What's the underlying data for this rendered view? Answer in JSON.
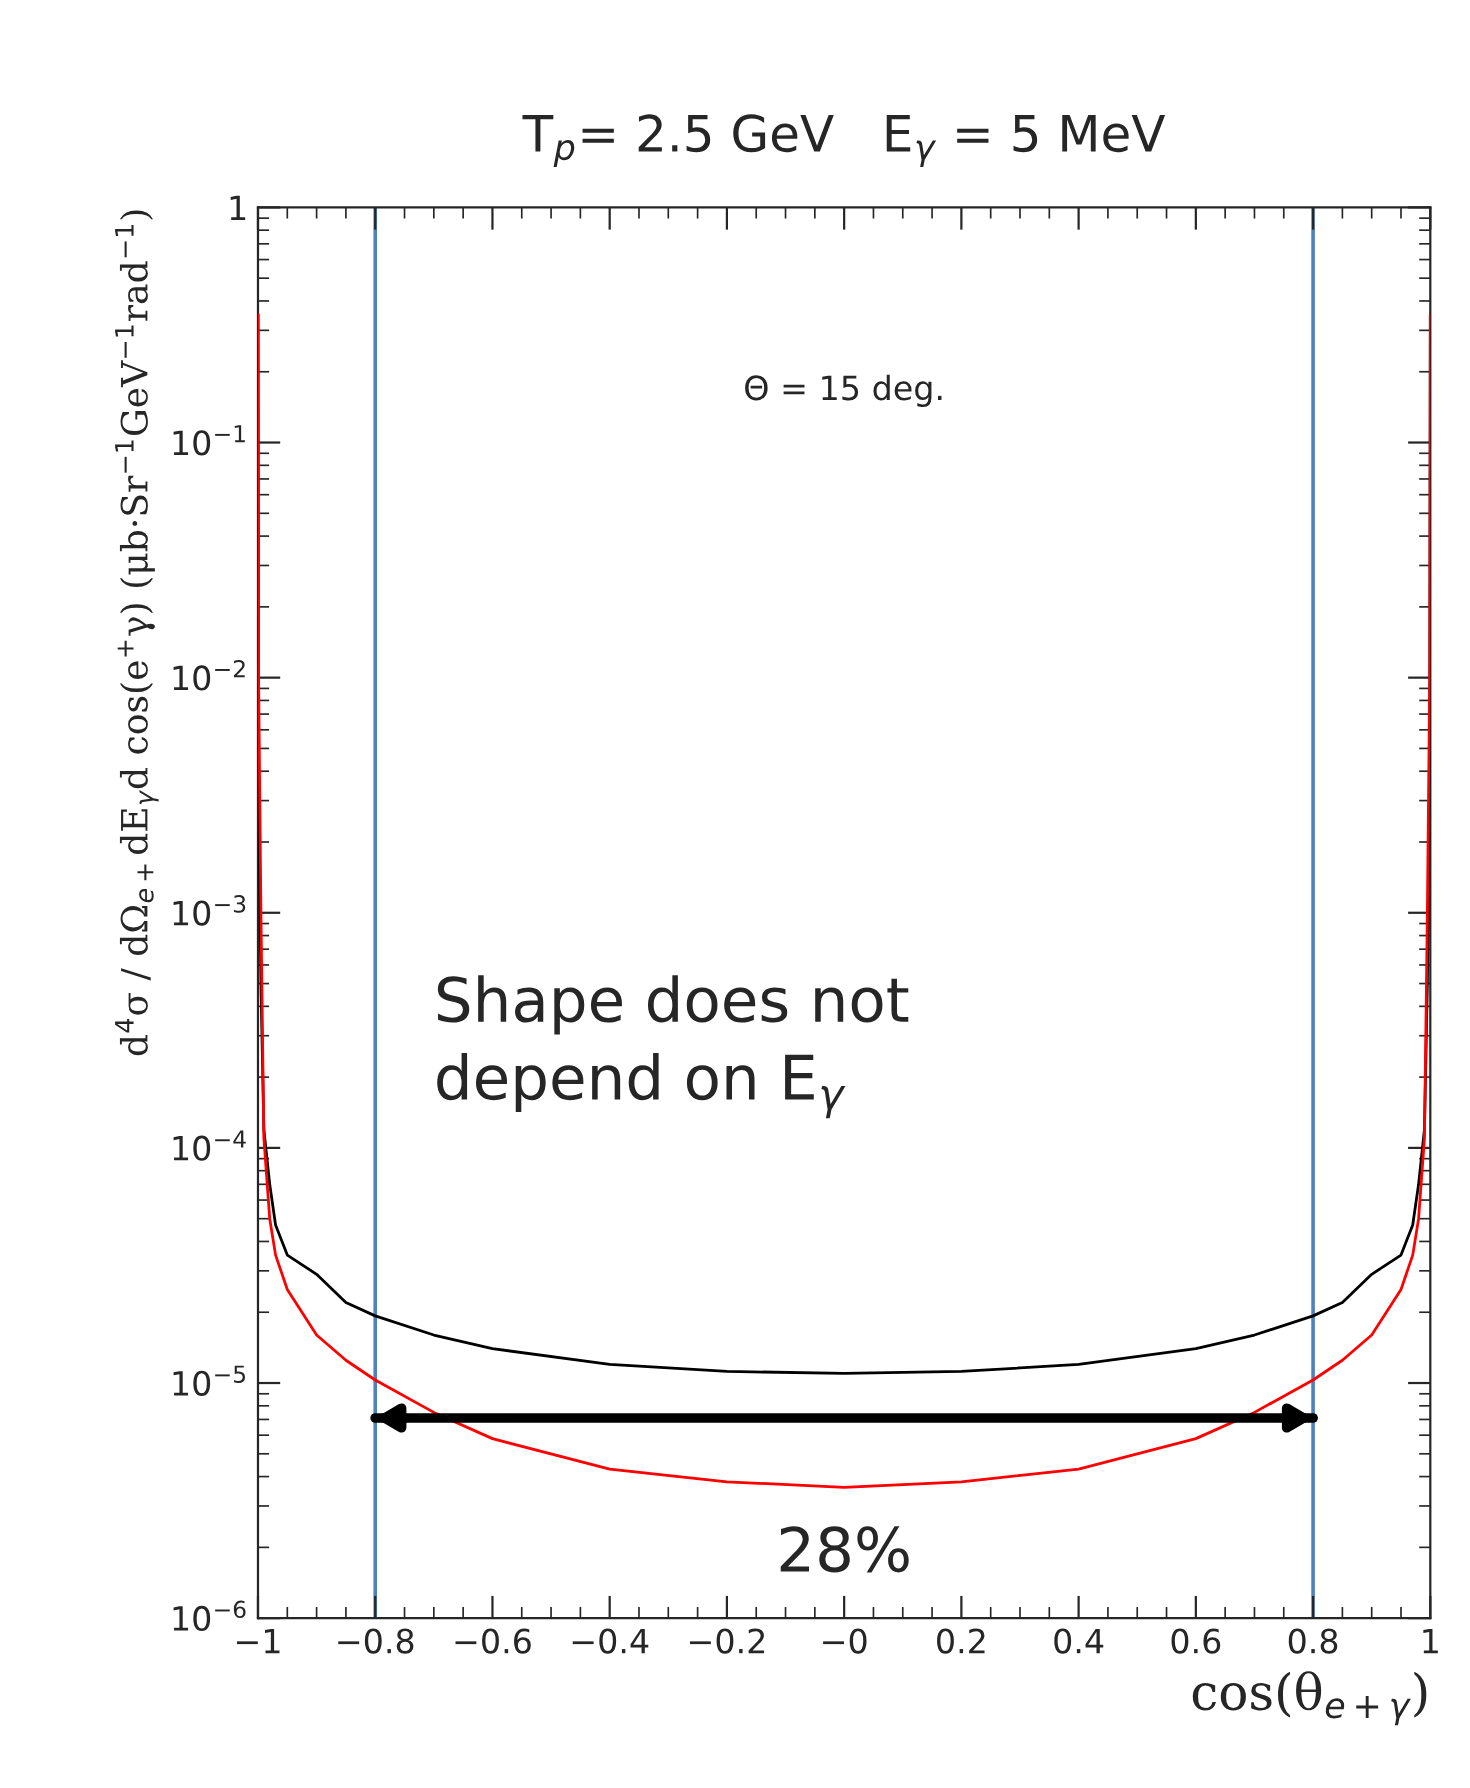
{
  "chart_data": {
    "type": "line",
    "title": "T$_{p}$= 2.5 GeV   E$_{γ}$ = 5 MeV",
    "xlabel": "cos(θ$_{e+γ}$)",
    "ylabel": "d$^{4}$σ / dΩ$_{e+}$dE$_{γ}$d cos(e$^{+}$γ) (μb·Sr$^{−1}$GeV$^{−1}$rad$^{−1}$)",
    "x": [
      -1,
      -0.999,
      -0.995,
      -0.99,
      -0.98,
      -0.97,
      -0.95,
      -0.9,
      -0.85,
      -0.8,
      -0.7,
      -0.6,
      -0.4,
      -0.2,
      0,
      0.2,
      0.4,
      0.6,
      0.7,
      0.8,
      0.85,
      0.9,
      0.95,
      0.97,
      0.98,
      0.99,
      0.995,
      0.999,
      1
    ],
    "series": [
      {
        "color": "#000000",
        "values": [
          0.35,
          0.004,
          0.0005,
          0.00012,
          7e-05,
          4.7e-05,
          3.5e-05,
          2.9e-05,
          2.2e-05,
          1.93e-05,
          1.6e-05,
          1.4e-05,
          1.2e-05,
          1.12e-05,
          1.1e-05,
          1.12e-05,
          1.2e-05,
          1.4e-05,
          1.6e-05,
          1.93e-05,
          2.2e-05,
          2.9e-05,
          3.5e-05,
          4.7e-05,
          7e-05,
          0.00012,
          0.0005,
          0.004,
          0.35
        ]
      },
      {
        "type": "line",
        "x": [
          -0.8,
          0.8
        ],
        "color": "#000000",
        "values": [
          7.1e-06,
          7.1e-06
        ]
      },
      {
        "color": "#ff0000",
        "values": [
          0.35,
          0.01,
          0.001,
          0.00011,
          5e-05,
          3.5e-05,
          2.5e-05,
          1.6e-05,
          1.25e-05,
          1.03e-05,
          7.5e-06,
          5.8e-06,
          4.3e-06,
          3.8e-06,
          3.6e-06,
          3.8e-06,
          4.3e-06,
          5.8e-06,
          7.5e-06,
          1.03e-05,
          1.25e-05,
          1.6e-05,
          2.5e-05,
          3.5e-05,
          5e-05,
          0.00011,
          0.001,
          0.01,
          0.35
        ]
      }
    ],
    "log": "y",
    "xlim": [
      -1,
      1
    ],
    "ylim": [
      1e-06,
      1
    ],
    "xticks": [
      {
        "value": -1,
        "label": "−1"
      },
      {
        "value": -0.8,
        "label": "−0.8"
      },
      {
        "value": -0.6,
        "label": "−0.6"
      },
      {
        "value": -0.4,
        "label": "−0.4"
      },
      {
        "value": -0.2,
        "label": "−0.2"
      },
      {
        "value": 0,
        "label": "−0"
      },
      {
        "value": 0.2,
        "label": "0.2"
      },
      {
        "value": 0.4,
        "label": "0.4"
      },
      {
        "value": 0.6,
        "label": "0.6"
      },
      {
        "value": 0.8,
        "label": "0.8"
      },
      {
        "value": 1,
        "label": "1"
      }
    ],
    "yticks": [
      {
        "value": 1e-06,
        "label": "10$^{−6}$"
      },
      {
        "value": 1e-05,
        "label": "10$^{−5}$"
      },
      {
        "value": 0.0001,
        "label": "10$^{−4}$"
      },
      {
        "value": 0.001,
        "label": "10$^{−3}$"
      },
      {
        "value": 0.01,
        "label": "10$^{−2}$"
      },
      {
        "value": 0.1,
        "label": "10$^{−1}$"
      },
      {
        "value": 1,
        "label": "1"
      }
    ],
    "ref_lines": [
      {
        "axis": "x",
        "value": -0.8,
        "color": "#4f81bd"
      },
      {
        "axis": "x",
        "value": 0.8,
        "color": "#4f81bd"
      }
    ],
    "annotations": [
      "Θ = 15 deg.",
      "Shape does not depend on E$_{γ}$",
      "28%"
    ],
    "grid": false,
    "legend": false,
    "marker": "none",
    "line_style": "solid"
  }
}
